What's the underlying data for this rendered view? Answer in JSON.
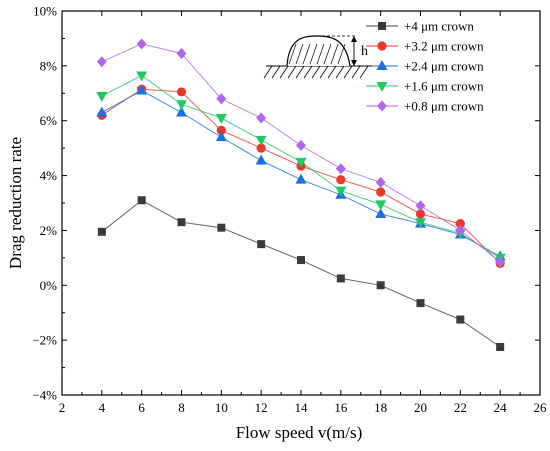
{
  "chart_data": {
    "type": "line",
    "xlabel": "Flow speed v(m/s)",
    "ylabel": "Drag reduction rate",
    "xlim": [
      2,
      26
    ],
    "ylim": [
      -4,
      10
    ],
    "x_ticks": [
      2,
      4,
      6,
      8,
      10,
      12,
      14,
      16,
      18,
      20,
      22,
      24,
      26
    ],
    "y_ticks": [
      -4,
      -2,
      0,
      2,
      4,
      6,
      8,
      10
    ],
    "x_tick_labels": [
      "2",
      "4",
      "6",
      "8",
      "10",
      "12",
      "14",
      "16",
      "18",
      "20",
      "22",
      "24",
      "26"
    ],
    "y_tick_labels": [
      "−4%",
      "−2%",
      "0%",
      "2%",
      "4%",
      "6%",
      "8%",
      "10%"
    ],
    "legend_position": "top-right",
    "grid": false,
    "inset": {
      "type": "crown-profile-sketch",
      "label": "h"
    },
    "x": [
      4,
      6,
      8,
      10,
      12,
      14,
      16,
      18,
      20,
      22,
      24
    ],
    "series": [
      {
        "name": "+4    μm crown",
        "color": "#3a3a3a",
        "marker": "square",
        "values": [
          1.95,
          3.1,
          2.3,
          2.1,
          1.5,
          0.92,
          0.25,
          0.0,
          -0.65,
          -1.25,
          -2.25
        ]
      },
      {
        "name": "+3.2 μm crown",
        "color": "#e8372c",
        "marker": "circle",
        "values": [
          6.2,
          7.15,
          7.05,
          5.65,
          5.0,
          4.35,
          3.85,
          3.4,
          2.6,
          2.25,
          0.8
        ]
      },
      {
        "name": "+2.4 μm crown",
        "color": "#1f6fe0",
        "marker": "triangle-up",
        "values": [
          6.3,
          7.1,
          6.3,
          5.4,
          4.55,
          3.85,
          3.3,
          2.6,
          2.25,
          1.85,
          1.05
        ]
      },
      {
        "name": "+1.6 μm crown",
        "color": "#22c766",
        "marker": "triangle-down",
        "values": [
          6.9,
          7.65,
          6.6,
          6.1,
          5.3,
          4.5,
          3.45,
          2.95,
          2.3,
          1.9,
          1.0
        ]
      },
      {
        "name": "+0.8 μm crown",
        "color": "#b066e8",
        "marker": "diamond",
        "values": [
          8.15,
          8.8,
          8.45,
          6.8,
          6.1,
          5.1,
          4.25,
          3.75,
          2.9,
          2.0,
          0.85
        ]
      }
    ]
  }
}
